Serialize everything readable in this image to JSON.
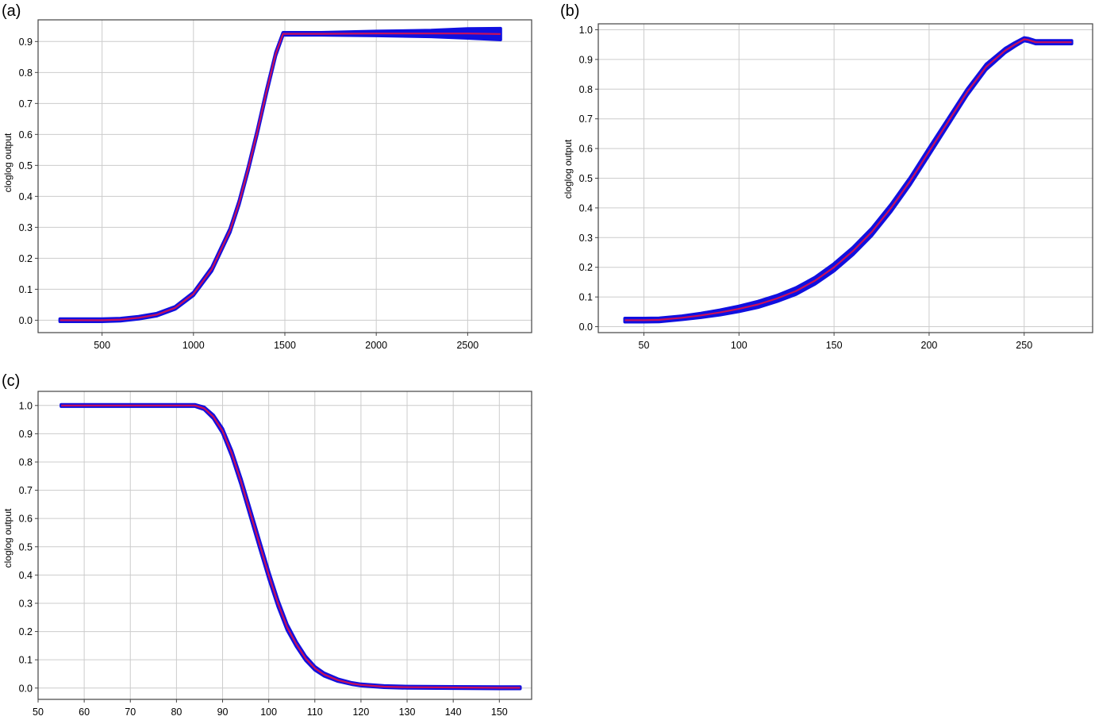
{
  "colors": {
    "band": "#1010e0",
    "line": "#c8105a",
    "grid": "#cccccc",
    "frame": "#444444"
  },
  "chart_data": [
    {
      "panel": "(a)",
      "type": "line",
      "ylabel": "cloglog output",
      "xlim": [
        150,
        2850
      ],
      "ylim": [
        -0.04,
        0.97
      ],
      "x_ticks": [
        "500",
        "1000",
        "1500",
        "2000",
        "2500"
      ],
      "y_ticks": [
        "0.0",
        "0.1",
        "0.2",
        "0.3",
        "0.4",
        "0.5",
        "0.6",
        "0.7",
        "0.8",
        "0.9"
      ],
      "grid": true,
      "series": [
        {
          "x": [
            270,
            400,
            500,
            600,
            700,
            800,
            900,
            1000,
            1100,
            1200,
            1250,
            1300,
            1350,
            1400,
            1450,
            1490,
            1500,
            1700,
            2000,
            2300,
            2500,
            2680
          ],
          "y": [
            0.0,
            0.0,
            0.0,
            0.002,
            0.008,
            0.018,
            0.04,
            0.085,
            0.165,
            0.29,
            0.38,
            0.49,
            0.61,
            0.74,
            0.86,
            0.925,
            0.925,
            0.925,
            0.926,
            0.926,
            0.926,
            0.924
          ],
          "band_halfwidth": [
            0.004,
            0.004,
            0.004,
            0.004,
            0.004,
            0.004,
            0.004,
            0.005,
            0.006,
            0.006,
            0.006,
            0.006,
            0.006,
            0.006,
            0.005,
            0.004,
            0.004,
            0.004,
            0.007,
            0.01,
            0.015,
            0.018
          ]
        }
      ]
    },
    {
      "panel": "(b)",
      "type": "line",
      "ylabel": "cloglog output",
      "xlim": [
        26,
        286
      ],
      "ylim": [
        -0.02,
        1.02
      ],
      "x_ticks": [
        "50",
        "100",
        "150",
        "200",
        "250"
      ],
      "y_ticks": [
        "0.0",
        "0.1",
        "0.2",
        "0.3",
        "0.4",
        "0.5",
        "0.6",
        "0.7",
        "0.8",
        "0.9",
        "1.0"
      ],
      "grid": true,
      "series": [
        {
          "x": [
            40,
            50,
            58,
            70,
            80,
            90,
            100,
            110,
            120,
            130,
            140,
            150,
            160,
            170,
            180,
            190,
            200,
            210,
            220,
            230,
            240,
            245,
            250,
            252,
            256,
            265,
            275
          ],
          "y": [
            0.022,
            0.022,
            0.023,
            0.03,
            0.038,
            0.048,
            0.06,
            0.075,
            0.095,
            0.12,
            0.155,
            0.2,
            0.255,
            0.32,
            0.4,
            0.49,
            0.59,
            0.69,
            0.79,
            0.875,
            0.93,
            0.95,
            0.968,
            0.966,
            0.958,
            0.958,
            0.958
          ],
          "band_halfwidth": [
            0.006,
            0.006,
            0.006,
            0.006,
            0.007,
            0.008,
            0.009,
            0.01,
            0.01,
            0.011,
            0.011,
            0.012,
            0.012,
            0.012,
            0.012,
            0.012,
            0.012,
            0.011,
            0.01,
            0.009,
            0.007,
            0.006,
            0.005,
            0.005,
            0.005,
            0.005,
            0.005
          ]
        }
      ]
    },
    {
      "panel": "(c)",
      "type": "line",
      "ylabel": "cloglog output",
      "xlim": [
        50,
        157
      ],
      "ylim": [
        -0.04,
        1.05
      ],
      "x_ticks": [
        "50",
        "60",
        "70",
        "80",
        "90",
        "100",
        "110",
        "120",
        "130",
        "140",
        "150"
      ],
      "y_ticks": [
        "0.0",
        "0.1",
        "0.2",
        "0.3",
        "0.4",
        "0.5",
        "0.6",
        "0.7",
        "0.8",
        "0.9",
        "1.0"
      ],
      "grid": true,
      "series": [
        {
          "x": [
            55,
            60,
            70,
            80,
            84,
            86,
            88,
            90,
            92,
            94,
            96,
            98,
            100,
            102,
            104,
            106,
            108,
            110,
            112,
            115,
            118,
            120,
            125,
            130,
            140,
            150,
            154.5
          ],
          "y": [
            1.0,
            1.0,
            1.0,
            1.0,
            1.0,
            0.99,
            0.96,
            0.91,
            0.83,
            0.73,
            0.62,
            0.51,
            0.4,
            0.3,
            0.215,
            0.155,
            0.105,
            0.07,
            0.048,
            0.028,
            0.016,
            0.011,
            0.005,
            0.003,
            0.002,
            0.001,
            0.001
          ],
          "band_halfwidth": [
            0.003,
            0.003,
            0.003,
            0.003,
            0.003,
            0.004,
            0.006,
            0.008,
            0.01,
            0.011,
            0.012,
            0.012,
            0.012,
            0.011,
            0.01,
            0.008,
            0.007,
            0.006,
            0.005,
            0.004,
            0.003,
            0.003,
            0.003,
            0.003,
            0.003,
            0.003,
            0.003
          ]
        }
      ]
    }
  ]
}
